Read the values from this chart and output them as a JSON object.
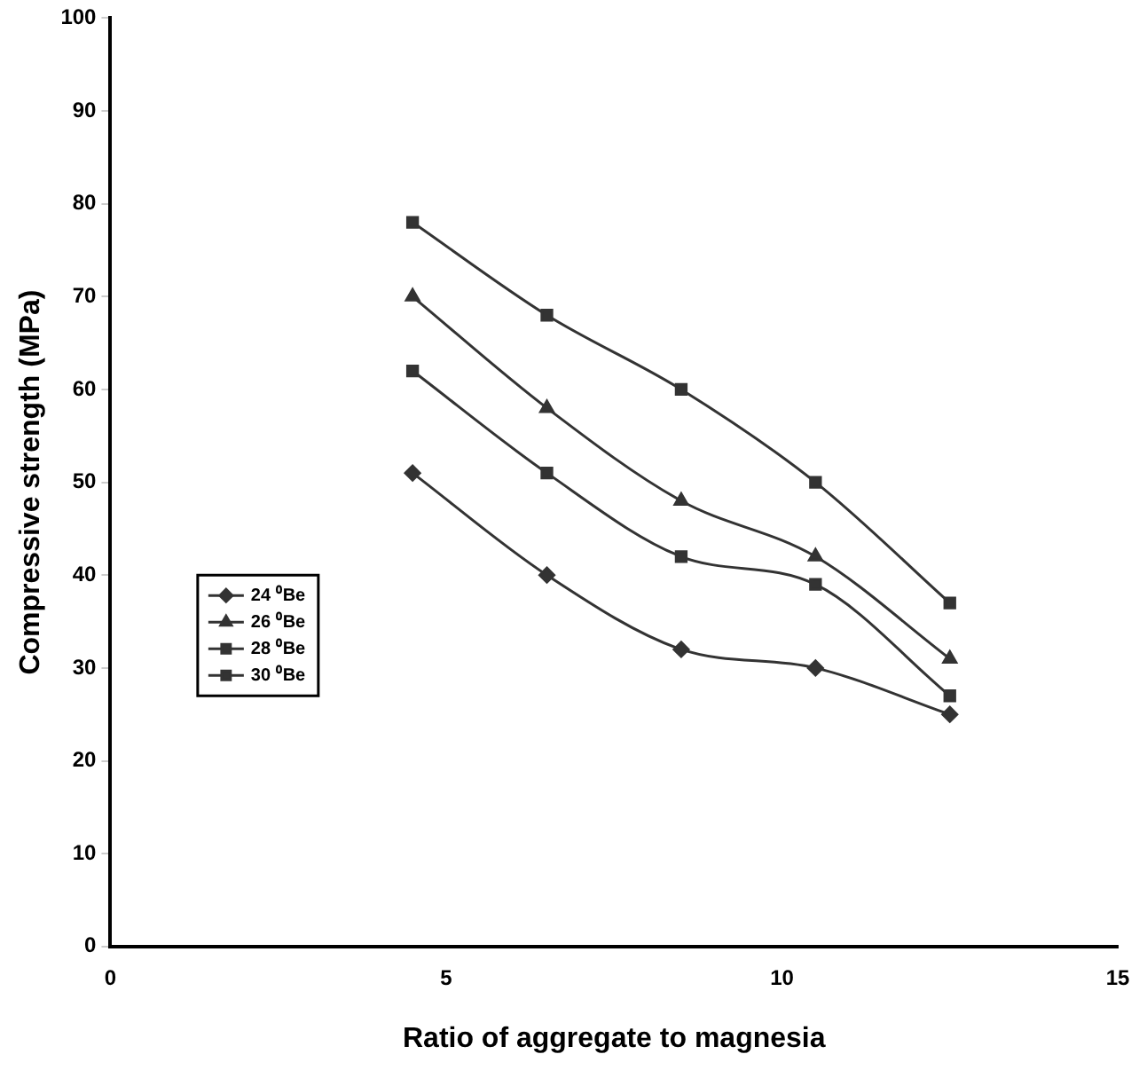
{
  "chart_data": {
    "type": "line",
    "xlabel": "Ratio of aggregate to magnesia",
    "ylabel": "Compressive strength (MPa)",
    "x": [
      4.5,
      6.5,
      8.5,
      10.5,
      12.5
    ],
    "series": [
      {
        "name": "24 ⁰Be",
        "color": "#333333",
        "marker": "diamond",
        "values": [
          51,
          40,
          32,
          30,
          25
        ]
      },
      {
        "name": "26 ⁰Be",
        "color": "#333333",
        "marker": "triangle",
        "values": [
          70,
          58,
          48,
          42,
          31
        ]
      },
      {
        "name": "28 ⁰Be",
        "color": "#333333",
        "marker": "square",
        "values": [
          62,
          51,
          42,
          39,
          27
        ]
      },
      {
        "name": "30 ⁰Be",
        "color": "#333333",
        "marker": "square",
        "values": [
          78,
          68,
          60,
          50,
          37
        ]
      }
    ],
    "xlim": [
      0,
      15
    ],
    "xticks": [
      0,
      5,
      10,
      15
    ],
    "ylim": [
      0,
      100
    ],
    "yticks": [
      0,
      10,
      20,
      30,
      40,
      50,
      60,
      70,
      80,
      90,
      100
    ],
    "grid": false,
    "legend": "left"
  }
}
